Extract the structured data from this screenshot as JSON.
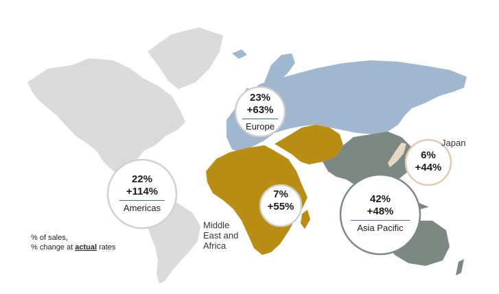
{
  "colors": {
    "americas": "#dadada",
    "europe": "#9fb7cf",
    "mea": "#b88d12",
    "asia_pacific": "#7b8982",
    "japan": "#e8d7c3",
    "bubble_fill": "#ffffff",
    "bubble_border_grey": "#cfcfcf",
    "bubble_border_asia": "#7b8982",
    "bubble_border_japan": "#e3c9b0",
    "rule_blue": "#3a6f8a"
  },
  "regions": [
    {
      "key": "americas",
      "share": "22%",
      "change": "+114%",
      "name": "Americas"
    },
    {
      "key": "europe",
      "share": "23%",
      "change": "+63%",
      "name": "Europe"
    },
    {
      "key": "mea",
      "share": "7%",
      "change": "+55%",
      "name": ""
    },
    {
      "key": "asia_pacific",
      "share": "42%",
      "change": "+48%",
      "name": "Asia Pacific"
    },
    {
      "key": "japan",
      "share": "6%",
      "change": "+44%",
      "name": ""
    }
  ],
  "outside_labels": {
    "mea": "Middle\nEast and\nAfrica",
    "japan": "Japan"
  },
  "legend": {
    "line1": "% of sales,",
    "line2_prefix": "% change at ",
    "line2_bold": "actual",
    "line2_suffix": " rates"
  }
}
